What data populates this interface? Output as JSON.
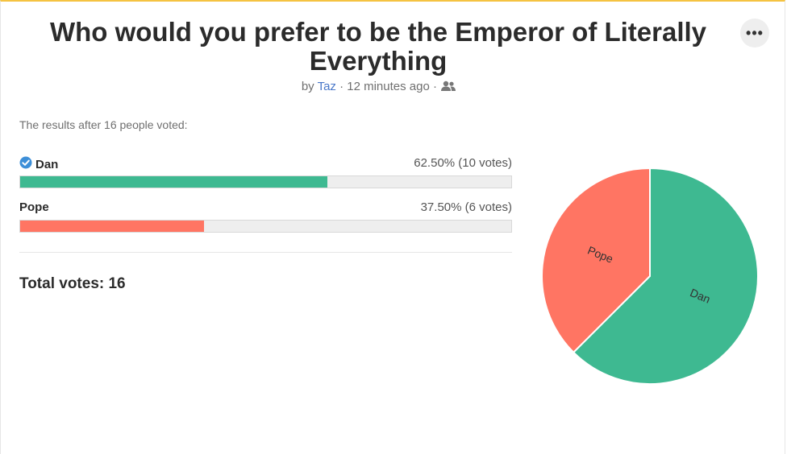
{
  "poll": {
    "title": "Who would you prefer to be the Emperor of Literally Everything",
    "meta": {
      "by": "by",
      "author": "Taz",
      "sep1": "·",
      "time": "12 minutes ago",
      "sep2": "·",
      "visibility_icon": "people-icon"
    },
    "menu_icon": "more-horizontal-icon",
    "menu_label": "•••",
    "intro": "The results after 16 people voted:",
    "total_label": "Total votes: 16"
  },
  "options": [
    {
      "label": "Dan",
      "stats": "62.50% (10 votes)",
      "voted_icon": "check-circle-icon"
    },
    {
      "label": "Pope",
      "stats": "37.50% (6 votes)"
    }
  ],
  "colors": {
    "dan": "#3eb991",
    "pope": "#ff7563",
    "accent": "#f5c342",
    "check": "#3d8fd8"
  },
  "chart_data": {
    "type": "pie",
    "categories": [
      "Dan",
      "Pope"
    ],
    "values": [
      10,
      6
    ],
    "percentages": [
      62.5,
      37.5
    ],
    "title": "",
    "legend": "none"
  }
}
